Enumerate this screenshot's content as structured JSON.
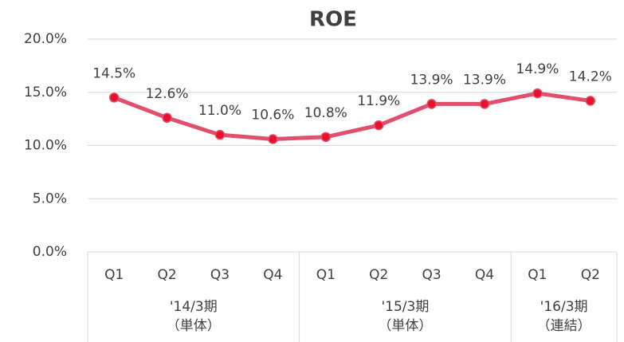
{
  "chart_data": {
    "type": "line",
    "title": "ROE",
    "groups": [
      {
        "label": [
          "'14/3期",
          "（単体）"
        ],
        "categories": [
          "Q1",
          "Q2",
          "Q3",
          "Q4"
        ]
      },
      {
        "label": [
          "'15/3期",
          "（単体）"
        ],
        "categories": [
          "Q1",
          "Q2",
          "Q3",
          "Q4"
        ]
      },
      {
        "label": [
          "'16/3期",
          "（連結）"
        ],
        "categories": [
          "Q1",
          "Q2"
        ]
      }
    ],
    "series": [
      {
        "name": "ROE",
        "color": "#e04f6c",
        "marker_color": "#e8102a",
        "values": [
          14.5,
          12.6,
          11.0,
          10.6,
          10.8,
          11.9,
          13.9,
          13.9,
          14.9,
          14.2
        ],
        "value_labels": [
          "14.5%",
          "12.6%",
          "11.0%",
          "10.6%",
          "10.8%",
          "11.9%",
          "13.9%",
          "13.9%",
          "14.9%",
          "14.2%"
        ]
      }
    ],
    "ylim": [
      0,
      20
    ],
    "yticks": [
      {
        "value": 0,
        "label": "0.0%"
      },
      {
        "value": 5,
        "label": "5.0%"
      },
      {
        "value": 10,
        "label": "10.0%"
      },
      {
        "value": 15,
        "label": "15.0%"
      },
      {
        "value": 20,
        "label": "20.0%"
      }
    ],
    "grid": true
  }
}
